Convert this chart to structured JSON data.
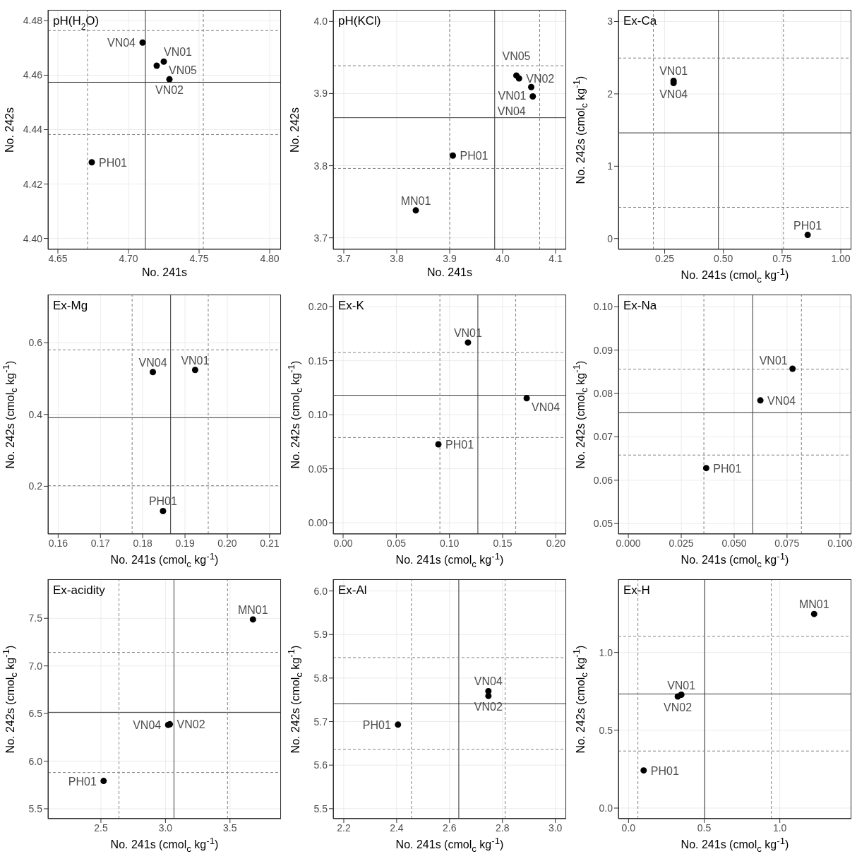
{
  "chart_data": [
    {
      "type": "scatter",
      "title": "pH(H$_{2}$O)",
      "xlabel": "No. 241s",
      "ylabel": "No. 242s",
      "color": "#000000",
      "marker": "circle",
      "grid": true,
      "x": [
        4.72,
        4.729,
        4.71,
        4.725,
        4.674
      ],
      "values": [
        4.4635,
        4.4585,
        4.472,
        4.465,
        4.428
      ],
      "annotations": [
        {
          "text": "VN01",
          "x": 4.72,
          "y": 4.4635
        },
        {
          "text": "VN02",
          "x": 4.729,
          "y": 4.4585
        },
        {
          "text": "VN04",
          "x": 4.71,
          "y": 4.472
        },
        {
          "text": "VN05",
          "x": 4.725,
          "y": 4.465
        },
        {
          "text": "PH01",
          "x": 4.674,
          "y": 4.428
        }
      ],
      "xlim": [
        4.643,
        4.808
      ],
      "ylim": [
        4.396,
        4.484
      ],
      "xticks": [
        4.65,
        {
          "value": 4.7,
          "label": "4.70"
        },
        4.75,
        {
          "value": 4.8,
          "label": "4.80"
        }
      ],
      "yticks": [
        {
          "value": 4.4,
          "label": "4.40"
        },
        4.42,
        4.44,
        4.46,
        4.48
      ],
      "ref_lines": [
        {
          "axis": "x",
          "value": 4.712,
          "color": "#333333",
          "line_style": "solid"
        },
        {
          "axis": "y",
          "value": 4.4574,
          "color": "#333333",
          "line_style": "solid"
        },
        {
          "axis": "x",
          "value": 4.671,
          "color": "#808080",
          "line_style": "dashed"
        },
        {
          "axis": "x",
          "value": 4.753,
          "color": "#808080",
          "line_style": "dashed"
        },
        {
          "axis": "y",
          "value": 4.4764,
          "color": "#808080",
          "line_style": "dashed"
        },
        {
          "axis": "y",
          "value": 4.4382,
          "color": "#808080",
          "line_style": "dashed"
        }
      ]
    },
    {
      "type": "scatter",
      "title": "pH(KCl)",
      "xlabel": "No. 241s",
      "ylabel": "No. 242s",
      "color": "#000000",
      "marker": "circle",
      "grid": true,
      "x": [
        3.836,
        3.906,
        4.026,
        4.031,
        4.054,
        4.057
      ],
      "values": [
        3.738,
        3.814,
        3.925,
        3.921,
        3.909,
        3.896
      ],
      "annotations": [
        {
          "text": "MN01",
          "x": 3.836,
          "y": 3.738
        },
        {
          "text": "PH01",
          "x": 3.906,
          "y": 3.814
        },
        {
          "text": "VN05",
          "x": 4.026,
          "y": 3.925
        },
        {
          "text": "VN02",
          "x": 4.031,
          "y": 3.921
        },
        {
          "text": "VN01",
          "x": 4.054,
          "y": 3.909
        },
        {
          "text": "VN04",
          "x": 4.057,
          "y": 3.896
        }
      ],
      "xlim": [
        3.68,
        4.12
      ],
      "ylim": [
        3.684,
        4.016
      ],
      "xticks": [
        3.7,
        3.8,
        3.9,
        {
          "value": 4,
          "label": "4.0"
        },
        4.1
      ],
      "yticks": [
        3.7,
        3.8,
        3.9,
        {
          "value": 4,
          "label": "4.0"
        }
      ],
      "ref_lines": [
        {
          "axis": "x",
          "value": 3.985,
          "color": "#333333",
          "line_style": "solid"
        },
        {
          "axis": "y",
          "value": 3.8665,
          "color": "#333333",
          "line_style": "solid"
        },
        {
          "axis": "x",
          "value": 3.9,
          "color": "#808080",
          "line_style": "dashed"
        },
        {
          "axis": "x",
          "value": 4.07,
          "color": "#808080",
          "line_style": "dashed"
        },
        {
          "axis": "y",
          "value": 3.9386,
          "color": "#808080",
          "line_style": "dashed"
        },
        {
          "axis": "y",
          "value": 3.7962,
          "color": "#808080",
          "line_style": "dashed"
        }
      ]
    },
    {
      "type": "scatter",
      "title": "Ex-Ca",
      "xlabel": "No. 241s (cmol$_{c}$ kg$^{-1}$)",
      "ylabel": "No. 242s (cmol$_{c}$ kg$^{-1}$)",
      "color": "#000000",
      "marker": "circle",
      "grid": true,
      "x": [
        0.288,
        0.288,
        0.859
      ],
      "values": [
        2.18,
        2.15,
        0.05
      ],
      "annotations": [
        {
          "text": "VN01",
          "x": 0.288,
          "y": 2.18
        },
        {
          "text": "VN04",
          "x": 0.288,
          "y": 2.15
        },
        {
          "text": "PH01",
          "x": 0.859,
          "y": 0.05
        }
      ],
      "xlim": [
        0.053,
        1.045
      ],
      "ylim": [
        -0.149,
        3.161
      ],
      "xticks": [
        0.25,
        {
          "value": 0.5,
          "label": "0.50"
        },
        0.75,
        {
          "value": 1,
          "label": "1.00"
        }
      ],
      "yticks": [
        0,
        1,
        2,
        3
      ],
      "ref_lines": [
        {
          "axis": "x",
          "value": 0.479,
          "color": "#333333",
          "line_style": "solid"
        },
        {
          "axis": "y",
          "value": 1.461,
          "color": "#333333",
          "line_style": "solid"
        },
        {
          "axis": "x",
          "value": 0.202,
          "color": "#808080",
          "line_style": "dashed"
        },
        {
          "axis": "x",
          "value": 0.756,
          "color": "#808080",
          "line_style": "dashed"
        },
        {
          "axis": "y",
          "value": 2.495,
          "color": "#808080",
          "line_style": "dashed"
        },
        {
          "axis": "y",
          "value": 0.432,
          "color": "#808080",
          "line_style": "dashed"
        }
      ]
    },
    {
      "type": "scatter",
      "title": "Ex-Mg",
      "xlabel": "No. 241s (cmol$_{c}$ kg$^{-1}$)",
      "ylabel": "No. 242s (cmol$_{c}$ kg$^{-1}$)",
      "color": "#000000",
      "marker": "circle",
      "grid": true,
      "x": [
        0.1824,
        0.1924,
        0.1848
      ],
      "values": [
        0.518,
        0.524,
        0.131
      ],
      "annotations": [
        {
          "text": "VN04",
          "x": 0.1824,
          "y": 0.518
        },
        {
          "text": "VN01",
          "x": 0.1924,
          "y": 0.524
        },
        {
          "text": "PH01",
          "x": 0.1848,
          "y": 0.131
        }
      ],
      "xlim": [
        0.1576,
        0.2127
      ],
      "ylim": [
        0.067,
        0.734
      ],
      "xticks": [
        0.16,
        0.17,
        0.18,
        0.19,
        {
          "value": 0.2,
          "label": "0.20"
        },
        0.21
      ],
      "yticks": [
        0.2,
        0.4,
        0.6
      ],
      "ref_lines": [
        {
          "axis": "x",
          "value": 0.1866,
          "color": "#333333",
          "line_style": "solid"
        },
        {
          "axis": "y",
          "value": 0.391,
          "color": "#333333",
          "line_style": "solid"
        },
        {
          "axis": "x",
          "value": 0.1775,
          "color": "#808080",
          "line_style": "dashed"
        },
        {
          "axis": "x",
          "value": 0.1955,
          "color": "#808080",
          "line_style": "dashed"
        },
        {
          "axis": "y",
          "value": 0.58,
          "color": "#808080",
          "line_style": "dashed"
        },
        {
          "axis": "y",
          "value": 0.2015,
          "color": "#808080",
          "line_style": "dashed"
        }
      ]
    },
    {
      "type": "scatter",
      "title": "Ex-K",
      "xlabel": "No. 241s (cmol$_{c}$ kg$^{-1}$)",
      "ylabel": "No. 242s (cmol$_{c}$ kg$^{-1}$)",
      "color": "#000000",
      "marker": "circle",
      "grid": true,
      "x": [
        0.1174,
        0.1726,
        0.0896
      ],
      "values": [
        0.1668,
        0.1153,
        0.0726
      ],
      "annotations": [
        {
          "text": "VN01",
          "x": 0.1174,
          "y": 0.1668
        },
        {
          "text": "VN04",
          "x": 0.1726,
          "y": 0.1153
        },
        {
          "text": "PH01",
          "x": 0.0896,
          "y": 0.0726
        }
      ],
      "xlim": [
        -0.0093,
        0.2097
      ],
      "ylim": [
        -0.0104,
        0.2112
      ],
      "xticks": [
        {
          "value": 0,
          "label": "0.00"
        },
        0.05,
        {
          "value": 0.1,
          "label": "0.10"
        },
        0.15,
        {
          "value": 0.2,
          "label": "0.20"
        }
      ],
      "yticks": [
        {
          "value": 0,
          "label": "0.00"
        },
        0.05,
        {
          "value": 0.1,
          "label": "0.10"
        },
        0.15,
        {
          "value": 0.2,
          "label": "0.20"
        }
      ],
      "ref_lines": [
        {
          "axis": "x",
          "value": 0.1267,
          "color": "#333333",
          "line_style": "solid"
        },
        {
          "axis": "y",
          "value": 0.118,
          "color": "#333333",
          "line_style": "solid"
        },
        {
          "axis": "x",
          "value": 0.091,
          "color": "#808080",
          "line_style": "dashed"
        },
        {
          "axis": "x",
          "value": 0.1623,
          "color": "#808080",
          "line_style": "dashed"
        },
        {
          "axis": "y",
          "value": 0.1576,
          "color": "#808080",
          "line_style": "dashed"
        },
        {
          "axis": "y",
          "value": 0.0789,
          "color": "#808080",
          "line_style": "dashed"
        }
      ]
    },
    {
      "type": "scatter",
      "title": "Ex-Na",
      "xlabel": "No. 241s (cmol$_{c}$ kg$^{-1}$)",
      "ylabel": "No. 242s (cmol$_{c}$ kg$^{-1}$)",
      "color": "#000000",
      "marker": "circle",
      "grid": true,
      "x": [
        0.0776,
        0.0624,
        0.0368
      ],
      "values": [
        0.0857,
        0.0784,
        0.0628
      ],
      "annotations": [
        {
          "text": "VN01",
          "x": 0.0776,
          "y": 0.0857
        },
        {
          "text": "VN04",
          "x": 0.0624,
          "y": 0.0784
        },
        {
          "text": "PH01",
          "x": 0.0368,
          "y": 0.0628
        }
      ],
      "xlim": [
        -0.0047,
        0.1054
      ],
      "ylim": [
        0.0476,
        0.1028
      ],
      "xticks": [
        {
          "value": 0,
          "label": "0.000"
        },
        0.025,
        {
          "value": 0.05,
          "label": "0.050"
        },
        0.075,
        {
          "value": 0.1,
          "label": "0.100"
        }
      ],
      "yticks": [
        0.05,
        0.06,
        0.07,
        0.08,
        0.09,
        {
          "value": 0.1,
          "label": "0.10"
        }
      ],
      "ref_lines": [
        {
          "axis": "x",
          "value": 0.0588,
          "color": "#333333",
          "line_style": "solid"
        },
        {
          "axis": "y",
          "value": 0.0756,
          "color": "#333333",
          "line_style": "solid"
        },
        {
          "axis": "x",
          "value": 0.0357,
          "color": "#808080",
          "line_style": "dashed"
        },
        {
          "axis": "x",
          "value": 0.0818,
          "color": "#808080",
          "line_style": "dashed"
        },
        {
          "axis": "y",
          "value": 0.0856,
          "color": "#808080",
          "line_style": "dashed"
        },
        {
          "axis": "y",
          "value": 0.0658,
          "color": "#808080",
          "line_style": "dashed"
        }
      ]
    },
    {
      "type": "scatter",
      "title": "Ex-acidity",
      "xlabel": "No. 241s (cmol$_{c}$ kg$^{-1}$)",
      "ylabel": "No. 242s (cmol$_{c}$ kg$^{-1}$)",
      "color": "#000000",
      "marker": "circle",
      "grid": true,
      "x": [
        3.678,
        3.034,
        3.021,
        2.521
      ],
      "values": [
        7.488,
        6.387,
        6.381,
        5.792
      ],
      "annotations": [
        {
          "text": "MN01",
          "x": 3.678,
          "y": 7.488
        },
        {
          "text": "VN02",
          "x": 3.034,
          "y": 6.387
        },
        {
          "text": "VN04",
          "x": 3.021,
          "y": 6.381
        },
        {
          "text": "PH01",
          "x": 2.521,
          "y": 5.792
        }
      ],
      "xlim": [
        2.09,
        3.895
      ],
      "ylim": [
        5.396,
        7.91
      ],
      "xticks": [
        2.5,
        {
          "value": 3,
          "label": "3.0"
        },
        3.5
      ],
      "yticks": [
        5.5,
        {
          "value": 6,
          "label": "6.0"
        },
        6.5,
        {
          "value": 7,
          "label": "7.0"
        },
        7.5
      ],
      "ref_lines": [
        {
          "axis": "x",
          "value": 3.066,
          "color": "#333333",
          "line_style": "solid"
        },
        {
          "axis": "y",
          "value": 6.513,
          "color": "#333333",
          "line_style": "solid"
        },
        {
          "axis": "x",
          "value": 2.64,
          "color": "#808080",
          "line_style": "dashed"
        },
        {
          "axis": "x",
          "value": 3.481,
          "color": "#808080",
          "line_style": "dashed"
        },
        {
          "axis": "y",
          "value": 7.142,
          "color": "#808080",
          "line_style": "dashed"
        },
        {
          "axis": "y",
          "value": 5.881,
          "color": "#808080",
          "line_style": "dashed"
        }
      ]
    },
    {
      "type": "scatter",
      "title": "Ex-Al",
      "xlabel": "No. 241s (cmol$_{c}$ kg$^{-1}$)",
      "ylabel": "No. 242s (cmol$_{c}$ kg$^{-1}$)",
      "color": "#000000",
      "marker": "circle",
      "grid": true,
      "x": [
        2.405,
        2.747,
        2.747
      ],
      "values": [
        5.693,
        5.77,
        5.759
      ],
      "annotations": [
        {
          "text": "PH01",
          "x": 2.405,
          "y": 5.693
        },
        {
          "text": "VN04",
          "x": 2.747,
          "y": 5.77
        },
        {
          "text": "VN02",
          "x": 2.747,
          "y": 5.759
        }
      ],
      "xlim": [
        2.16,
        3.041
      ],
      "ylim": [
        5.477,
        6.027
      ],
      "xticks": [
        2.2,
        2.4,
        2.6,
        2.8,
        {
          "value": 3,
          "label": "3.0"
        }
      ],
      "yticks": [
        5.5,
        5.6,
        5.7,
        5.8,
        5.9,
        {
          "value": 6,
          "label": "6.0"
        }
      ],
      "ref_lines": [
        {
          "axis": "x",
          "value": 2.635,
          "color": "#333333",
          "line_style": "solid"
        },
        {
          "axis": "y",
          "value": 5.741,
          "color": "#333333",
          "line_style": "solid"
        },
        {
          "axis": "x",
          "value": 2.456,
          "color": "#808080",
          "line_style": "dashed"
        },
        {
          "axis": "x",
          "value": 2.81,
          "color": "#808080",
          "line_style": "dashed"
        },
        {
          "axis": "y",
          "value": 5.847,
          "color": "#808080",
          "line_style": "dashed"
        },
        {
          "axis": "y",
          "value": 5.636,
          "color": "#808080",
          "line_style": "dashed"
        }
      ]
    },
    {
      "type": "scatter",
      "title": "Ex-H",
      "xlabel": "No. 241s (cmol$_{c}$ kg$^{-1}$)",
      "ylabel": "No. 242s (cmol$_{c}$ kg$^{-1}$)",
      "color": "#000000",
      "marker": "circle",
      "grid": true,
      "x": [
        1.227,
        0.349,
        0.3255,
        0.1
      ],
      "values": [
        1.247,
        0.728,
        0.717,
        0.242
      ],
      "annotations": [
        {
          "text": "MN01",
          "x": 1.227,
          "y": 1.247
        },
        {
          "text": "VN01",
          "x": 0.349,
          "y": 0.728
        },
        {
          "text": "VN02",
          "x": 0.3255,
          "y": 0.717
        },
        {
          "text": "PH01",
          "x": 0.1,
          "y": 0.242
        }
      ],
      "xlim": [
        -0.067,
        1.473
      ],
      "ylim": [
        -0.068,
        1.47
      ],
      "xticks": [
        {
          "value": 0,
          "label": "0.0"
        },
        0.5,
        {
          "value": 1,
          "label": "1.0"
        }
      ],
      "yticks": [
        {
          "value": 0,
          "label": "0.0"
        },
        0.5,
        {
          "value": 1,
          "label": "1.0"
        }
      ],
      "ref_lines": [
        {
          "axis": "x",
          "value": 0.504,
          "color": "#333333",
          "line_style": "solid"
        },
        {
          "axis": "y",
          "value": 0.733,
          "color": "#333333",
          "line_style": "solid"
        },
        {
          "axis": "x",
          "value": 0.062,
          "color": "#808080",
          "line_style": "dashed"
        },
        {
          "axis": "x",
          "value": 0.944,
          "color": "#808080",
          "line_style": "dashed"
        },
        {
          "axis": "y",
          "value": 1.103,
          "color": "#808080",
          "line_style": "dashed"
        },
        {
          "axis": "y",
          "value": 0.3665,
          "color": "#808080",
          "line_style": "dashed"
        }
      ]
    }
  ]
}
